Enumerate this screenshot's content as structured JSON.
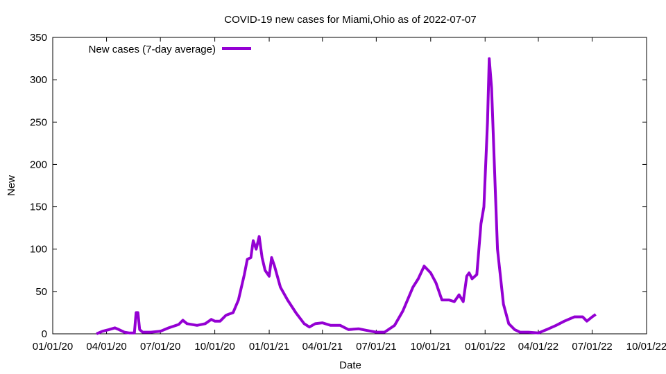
{
  "colors": {
    "series": "#9400d3",
    "axis": "#000000",
    "background": "#ffffff"
  },
  "chart_data": {
    "type": "line",
    "title": "COVID-19 new cases for Miami,Ohio as of 2022-07-07",
    "xlabel": "Date",
    "ylabel": "New",
    "xlim": [
      "2020-01-01",
      "2022-10-01"
    ],
    "ylim": [
      0,
      350
    ],
    "x_ticks": [
      {
        "date": "2020-01-01",
        "label": "01/01/20"
      },
      {
        "date": "2020-04-01",
        "label": "04/01/20"
      },
      {
        "date": "2020-07-01",
        "label": "07/01/20"
      },
      {
        "date": "2020-10-01",
        "label": "10/01/20"
      },
      {
        "date": "2021-01-01",
        "label": "01/01/21"
      },
      {
        "date": "2021-04-01",
        "label": "04/01/21"
      },
      {
        "date": "2021-07-01",
        "label": "07/01/21"
      },
      {
        "date": "2021-10-01",
        "label": "10/01/21"
      },
      {
        "date": "2022-01-01",
        "label": "01/01/22"
      },
      {
        "date": "2022-04-01",
        "label": "04/01/22"
      },
      {
        "date": "2022-07-01",
        "label": "07/01/22"
      },
      {
        "date": "2022-10-01",
        "label": "10/01/22"
      }
    ],
    "y_ticks": [
      0,
      50,
      100,
      150,
      200,
      250,
      300,
      350
    ],
    "legend_position": "top-left",
    "grid": false,
    "series": [
      {
        "name": "New cases (7-day average)",
        "color": "#9400d3",
        "points": [
          [
            "2020-03-15",
            0
          ],
          [
            "2020-03-25",
            3
          ],
          [
            "2020-04-05",
            5
          ],
          [
            "2020-04-15",
            7
          ],
          [
            "2020-04-22",
            5
          ],
          [
            "2020-05-01",
            2
          ],
          [
            "2020-05-10",
            1
          ],
          [
            "2020-05-18",
            1
          ],
          [
            "2020-05-21",
            25
          ],
          [
            "2020-05-24",
            25
          ],
          [
            "2020-05-27",
            5
          ],
          [
            "2020-06-01",
            2
          ],
          [
            "2020-06-15",
            2
          ],
          [
            "2020-07-01",
            3
          ],
          [
            "2020-07-15",
            7
          ],
          [
            "2020-08-01",
            11
          ],
          [
            "2020-08-08",
            16
          ],
          [
            "2020-08-15",
            12
          ],
          [
            "2020-09-01",
            10
          ],
          [
            "2020-09-15",
            12
          ],
          [
            "2020-09-25",
            17
          ],
          [
            "2020-10-01",
            15
          ],
          [
            "2020-10-10",
            15
          ],
          [
            "2020-10-20",
            22
          ],
          [
            "2020-11-01",
            25
          ],
          [
            "2020-11-10",
            40
          ],
          [
            "2020-11-20",
            70
          ],
          [
            "2020-11-25",
            88
          ],
          [
            "2020-12-01",
            90
          ],
          [
            "2020-12-05",
            110
          ],
          [
            "2020-12-10",
            100
          ],
          [
            "2020-12-15",
            115
          ],
          [
            "2020-12-20",
            90
          ],
          [
            "2020-12-25",
            75
          ],
          [
            "2021-01-01",
            68
          ],
          [
            "2021-01-05",
            90
          ],
          [
            "2021-01-10",
            80
          ],
          [
            "2021-01-20",
            55
          ],
          [
            "2021-02-01",
            40
          ],
          [
            "2021-02-15",
            25
          ],
          [
            "2021-03-01",
            12
          ],
          [
            "2021-03-10",
            8
          ],
          [
            "2021-03-20",
            12
          ],
          [
            "2021-04-01",
            13
          ],
          [
            "2021-04-15",
            10
          ],
          [
            "2021-05-01",
            10
          ],
          [
            "2021-05-15",
            5
          ],
          [
            "2021-06-01",
            6
          ],
          [
            "2021-06-15",
            4
          ],
          [
            "2021-07-01",
            2
          ],
          [
            "2021-07-15",
            2
          ],
          [
            "2021-08-01",
            10
          ],
          [
            "2021-08-15",
            27
          ],
          [
            "2021-09-01",
            55
          ],
          [
            "2021-09-10",
            65
          ],
          [
            "2021-09-20",
            80
          ],
          [
            "2021-10-01",
            72
          ],
          [
            "2021-10-10",
            60
          ],
          [
            "2021-10-20",
            40
          ],
          [
            "2021-11-01",
            40
          ],
          [
            "2021-11-10",
            38
          ],
          [
            "2021-11-18",
            46
          ],
          [
            "2021-11-25",
            38
          ],
          [
            "2021-12-01",
            68
          ],
          [
            "2021-12-05",
            72
          ],
          [
            "2021-12-10",
            65
          ],
          [
            "2021-12-18",
            70
          ],
          [
            "2021-12-25",
            130
          ],
          [
            "2021-12-30",
            150
          ],
          [
            "2022-01-05",
            250
          ],
          [
            "2022-01-08",
            325
          ],
          [
            "2022-01-12",
            290
          ],
          [
            "2022-01-18",
            175
          ],
          [
            "2022-01-22",
            100
          ],
          [
            "2022-02-01",
            35
          ],
          [
            "2022-02-10",
            12
          ],
          [
            "2022-02-20",
            5
          ],
          [
            "2022-03-01",
            2
          ],
          [
            "2022-03-15",
            2
          ],
          [
            "2022-04-01",
            1
          ],
          [
            "2022-04-15",
            5
          ],
          [
            "2022-05-01",
            10
          ],
          [
            "2022-05-15",
            15
          ],
          [
            "2022-06-01",
            20
          ],
          [
            "2022-06-15",
            20
          ],
          [
            "2022-06-22",
            15
          ],
          [
            "2022-07-01",
            20
          ],
          [
            "2022-07-07",
            23
          ]
        ]
      }
    ]
  }
}
